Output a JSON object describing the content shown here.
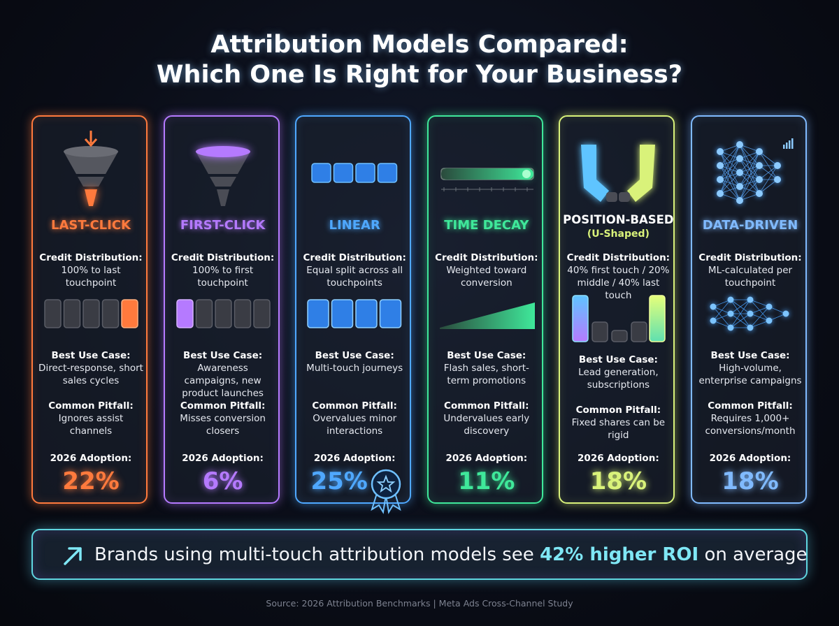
{
  "title_lines": [
    "Attribution Models Compared:",
    "Which One Is Right for Your Business?"
  ],
  "cards": [
    {
      "name": "LAST-CLICK",
      "credit_label": "Credit Distribution:",
      "credit": "100% to last touchpoint",
      "use_label": "Best Use Case:",
      "use": "Direct-response, short sales cycles",
      "pitfall_label": "Common Pitfall:",
      "pitfall": "Ignores assist channels",
      "adoption_label": "2026 Adoption:",
      "adoption": "22%"
    },
    {
      "name": "FIRST-CLICK",
      "credit_label": "Credit Distribution:",
      "credit": "100% to first touchpoint",
      "use_label": "Best Use Case:",
      "use": "Awareness campaigns, new product launches",
      "pitfall_label": "Common Pitfall:",
      "pitfall": "Misses conversion closers",
      "adoption_label": "2026 Adoption:",
      "adoption": "6%"
    },
    {
      "name": "LINEAR",
      "credit_label": "Credit Distribution:",
      "credit": "Equal split across all touchpoints",
      "use_label": "Best Use Case:",
      "use": "Multi-touch journeys",
      "pitfall_label": "Common Pitfall:",
      "pitfall": "Overvalues minor interactions",
      "adoption_label": "2026 Adoption:",
      "adoption": "25%"
    },
    {
      "name": "TIME DECAY",
      "credit_label": "Credit Distribution:",
      "credit": "Weighted toward conversion",
      "use_label": "Best Use Case:",
      "use": "Flash sales, short-term promotions",
      "pitfall_label": "Common Pitfall:",
      "pitfall": "Undervalues early discovery",
      "adoption_label": "2026 Adoption:",
      "adoption": "11%"
    },
    {
      "name": "POSITION-BASED",
      "subtitle": "(U-Shaped)",
      "credit_label": "Credit Distribution:",
      "credit": "40% first touch / 20% middle / 40% last touch",
      "use_label": "Best Use Case:",
      "use": "Lead generation, subscriptions",
      "pitfall_label": "Common Pitfall:",
      "pitfall": "Fixed shares can be rigid",
      "adoption_label": "2026 Adoption:",
      "adoption": "18%"
    },
    {
      "name": "DATA-DRIVEN",
      "credit_label": "Credit Distribution:",
      "credit": "ML-calculated per touchpoint",
      "use_label": "Best Use Case:",
      "use": "High-volume, enterprise campaigns",
      "pitfall_label": "Common Pitfall:",
      "pitfall": "Requires 1,000+ conversions/month",
      "adoption_label": "2026 Adoption:",
      "adoption": "18%"
    }
  ],
  "banner": {
    "before": "Brands using multi-touch attribution models see",
    "highlight": "42% higher ROI",
    "after": "on average"
  },
  "source": "Source: 2026 Attribution Benchmarks | Meta Ads Cross-Channel Study"
}
